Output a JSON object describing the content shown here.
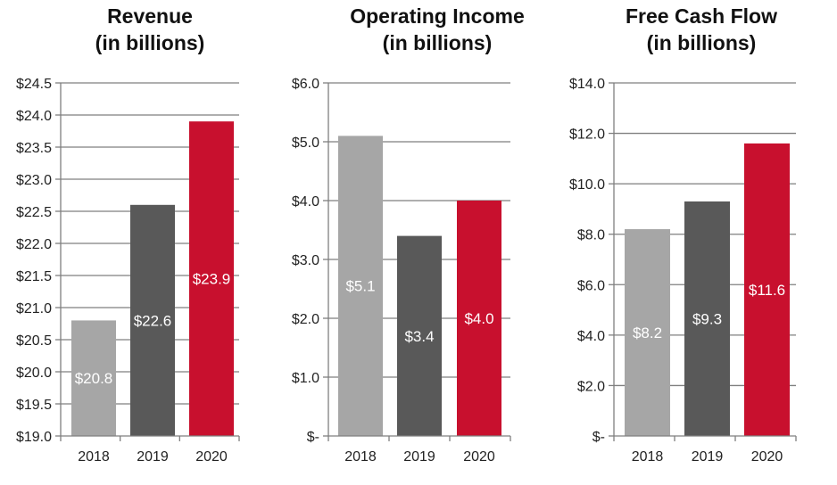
{
  "chart_data": [
    {
      "type": "bar",
      "title_lines": [
        "Revenue",
        "(in billions)"
      ],
      "categories": [
        "2018",
        "2019",
        "2020"
      ],
      "values": [
        20.8,
        22.6,
        23.9
      ],
      "data_labels": [
        "$20.8",
        "$22.6",
        "$23.9"
      ],
      "ylim": [
        19.0,
        24.5
      ],
      "yticks": [
        19.0,
        19.5,
        20.0,
        20.5,
        21.0,
        21.5,
        22.0,
        22.5,
        23.0,
        23.5,
        24.0,
        24.5
      ],
      "ytick_labels": [
        "$19.0",
        "$19.5",
        "$20.0",
        "$20.5",
        "$21.0",
        "$21.5",
        "$22.0",
        "$22.5",
        "$23.0",
        "$23.5",
        "$24.0",
        "$24.5"
      ],
      "grid": true,
      "bar_colors": [
        "#a6a6a6",
        "#595959",
        "#c8102e"
      ]
    },
    {
      "type": "bar",
      "title_lines": [
        "Operating Income",
        "(in billions)"
      ],
      "categories": [
        "2018",
        "2019",
        "2020"
      ],
      "values": [
        5.1,
        3.4,
        4.0
      ],
      "data_labels": [
        "$5.1",
        "$3.4",
        "$4.0"
      ],
      "ylim": [
        0,
        6.0
      ],
      "yticks": [
        0,
        1.0,
        2.0,
        3.0,
        4.0,
        5.0,
        6.0
      ],
      "ytick_labels": [
        "$-",
        "$1.0",
        "$2.0",
        "$3.0",
        "$4.0",
        "$5.0",
        "$6.0"
      ],
      "grid": true,
      "bar_colors": [
        "#a6a6a6",
        "#595959",
        "#c8102e"
      ]
    },
    {
      "type": "bar",
      "title_lines": [
        "Free Cash Flow",
        "(in billions)"
      ],
      "categories": [
        "2018",
        "2019",
        "2020"
      ],
      "values": [
        8.2,
        9.3,
        11.6
      ],
      "data_labels": [
        "$8.2",
        "$9.3",
        "$11.6"
      ],
      "ylim": [
        0,
        14.0
      ],
      "yticks": [
        0,
        2.0,
        4.0,
        6.0,
        8.0,
        10.0,
        12.0,
        14.0
      ],
      "ytick_labels": [
        "$-",
        "$2.0",
        "$4.0",
        "$6.0",
        "$8.0",
        "$10.0",
        "$12.0",
        "$14.0"
      ],
      "grid": true,
      "bar_colors": [
        "#a6a6a6",
        "#595959",
        "#c8102e"
      ]
    }
  ]
}
